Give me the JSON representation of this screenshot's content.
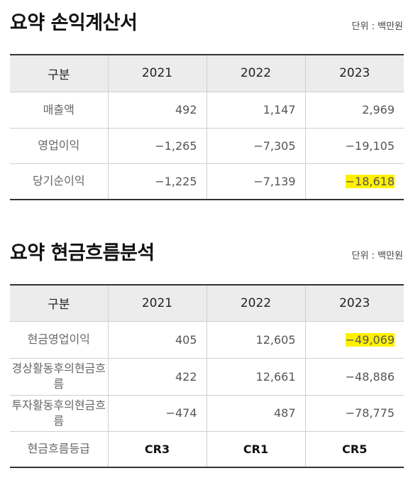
{
  "income": {
    "title": "요약 손익계산서",
    "unit": "단위 : 백만원",
    "headers": [
      "구분",
      "2021",
      "2022",
      "2023"
    ],
    "rows": [
      {
        "label": "매출액",
        "v2021": "492",
        "v2022": "1,147",
        "v2023": "2,969"
      },
      {
        "label": "영업이익",
        "v2021": "−1,265",
        "v2022": "−7,305",
        "v2023": "−19,105"
      },
      {
        "label": "당기순이익",
        "v2021": "−1,225",
        "v2022": "−7,139",
        "v2023": "−18,618"
      }
    ]
  },
  "cashflow": {
    "title": "요약 현금흐름분석",
    "unit": "단위 : 백만원",
    "headers": [
      "구분",
      "2021",
      "2022",
      "2023"
    ],
    "rows": [
      {
        "label": "현금영업이익",
        "v2021": "405",
        "v2022": "12,605",
        "v2023": "−49,069"
      },
      {
        "label": "경상활동후의현금흐름",
        "v2021": "422",
        "v2022": "12,661",
        "v2023": "−48,886"
      },
      {
        "label": "투자활동후의현금흐름",
        "v2021": "−474",
        "v2022": "487",
        "v2023": "−78,775"
      }
    ],
    "grade": {
      "label": "현금흐름등급",
      "v2021": "CR3",
      "v2022": "CR1",
      "v2023": "CR5"
    }
  },
  "highlight_color": "#fff100"
}
